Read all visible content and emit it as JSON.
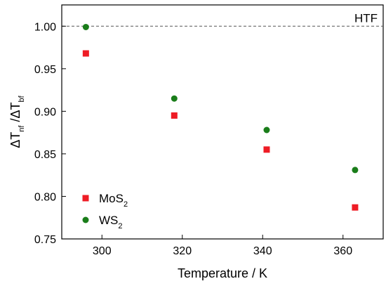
{
  "chart_data": {
    "type": "scatter",
    "xlabel": "Temperature / K",
    "ylabel": {
      "main": "ΔT",
      "sub1": "nf",
      "mid": " /ΔT",
      "sub2": "bf"
    },
    "xlim": [
      290,
      370
    ],
    "ylim": [
      0.75,
      1.025
    ],
    "xticks": [
      300,
      320,
      340,
      360
    ],
    "yticks": [
      0.75,
      0.8,
      0.85,
      0.9,
      0.95,
      1.0
    ],
    "ytick_labels": [
      "0.75",
      "0.80",
      "0.85",
      "0.90",
      "0.95",
      "1.00"
    ],
    "grid": false,
    "legend_position": "bottom-left",
    "reference_line": {
      "y": 1.0,
      "label": "HTF",
      "style": "dashed"
    },
    "series": [
      {
        "name": "MoS",
        "name_sub": "2",
        "marker": "square",
        "color": "#ee1c25",
        "x": [
          296,
          318,
          341,
          363
        ],
        "y": [
          0.968,
          0.895,
          0.855,
          0.787
        ]
      },
      {
        "name": "WS",
        "name_sub": "2",
        "marker": "circle",
        "color": "#1a7d1a",
        "x": [
          296,
          318,
          341,
          363
        ],
        "y": [
          0.999,
          0.915,
          0.878,
          0.831
        ]
      }
    ]
  }
}
